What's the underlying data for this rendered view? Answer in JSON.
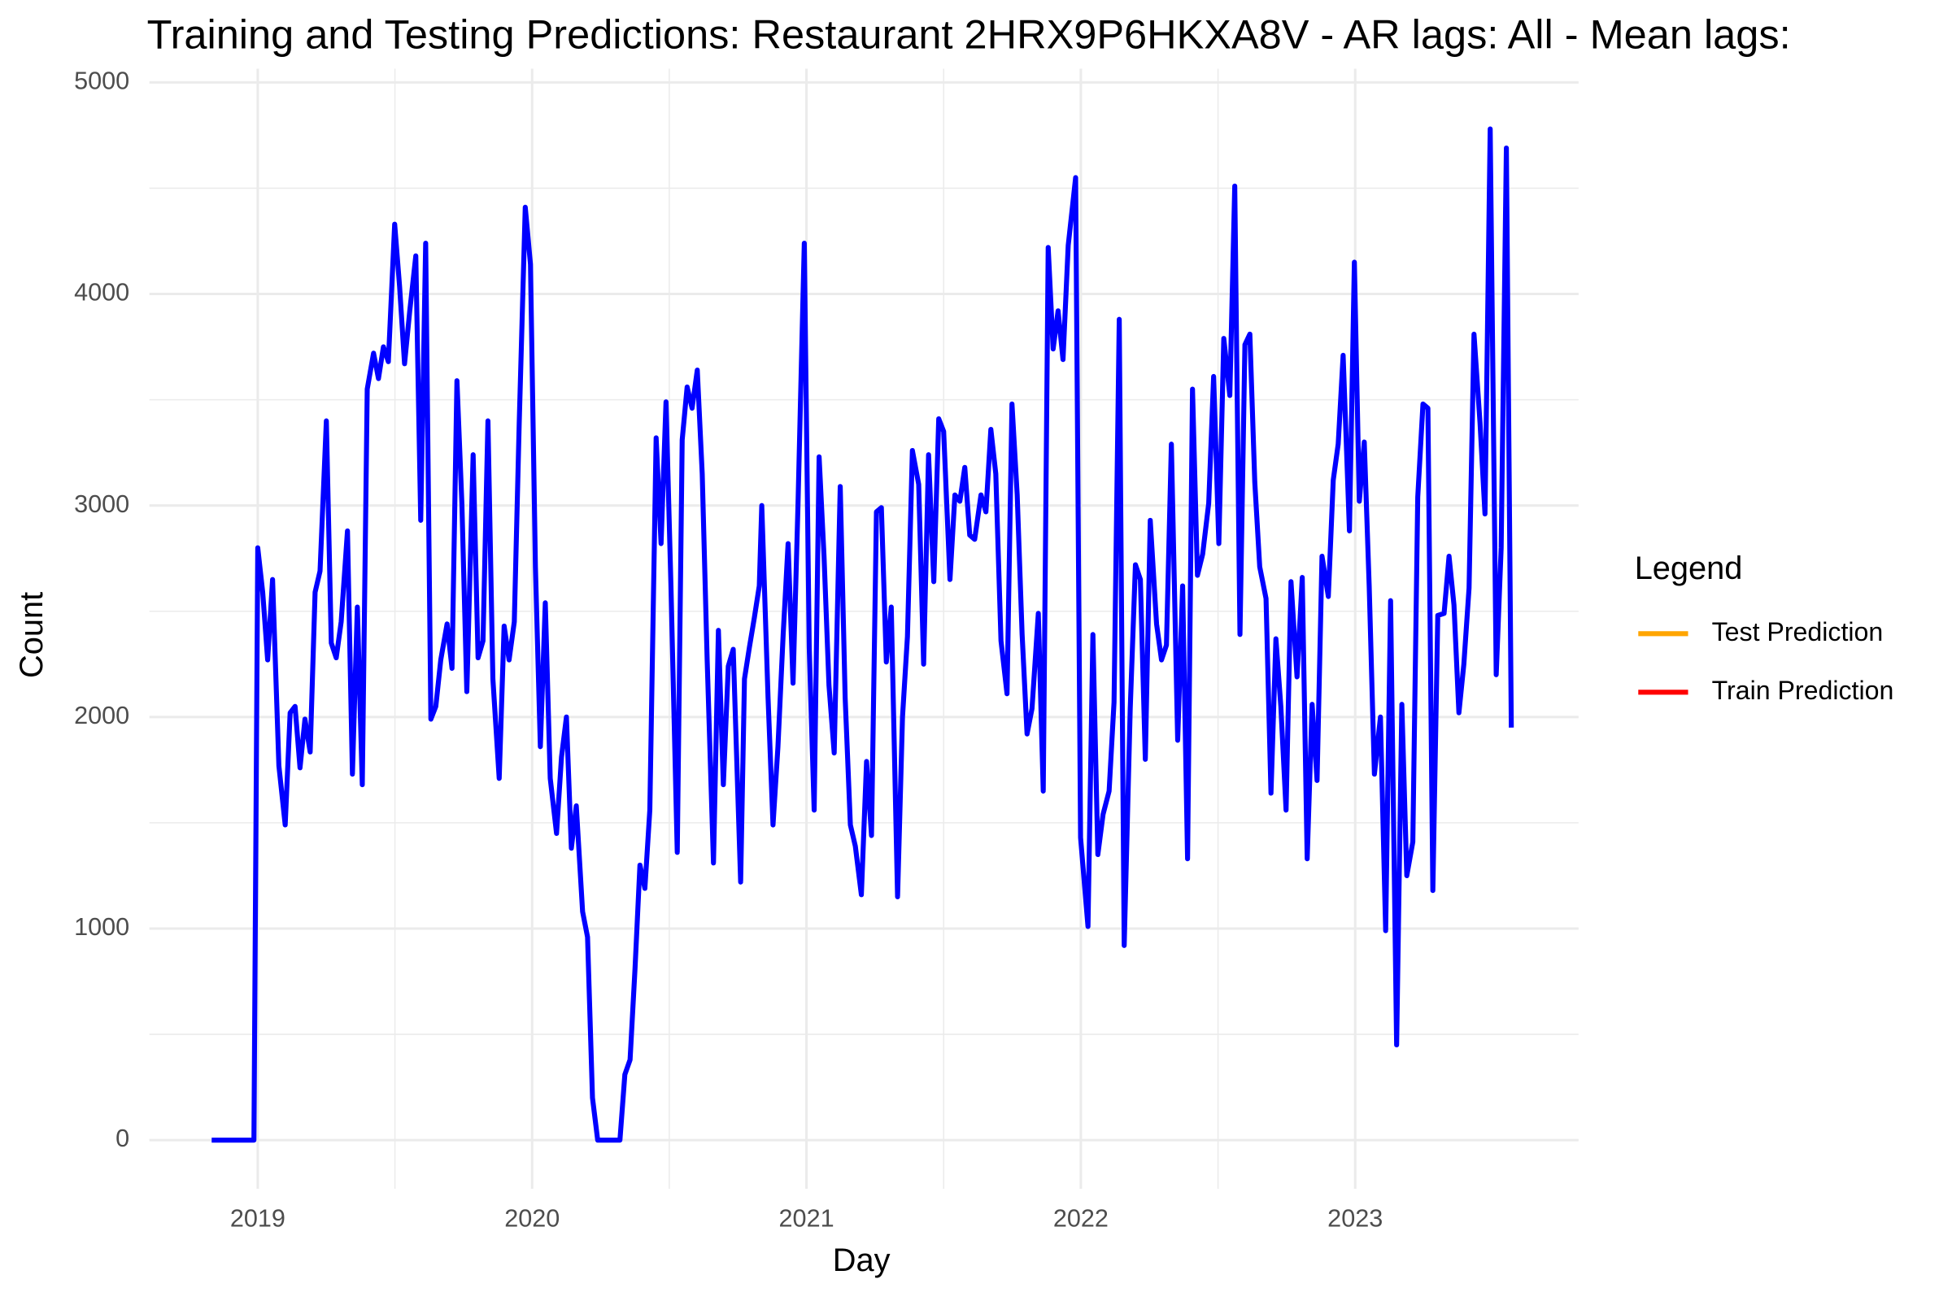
{
  "chart_data": {
    "type": "line",
    "title": "Training and Testing Predictions: Restaurant 2HRX9P6HKXA8V - AR lags: All - Mean lags:",
    "x_label": "Day",
    "y_label": "Count",
    "xlim": [
      2018.605,
      2023.814
    ],
    "xticks": [
      2019,
      2020,
      2021,
      2022,
      2023
    ],
    "ylim": [
      -230,
      5065
    ],
    "yticks": [
      0,
      1000,
      2000,
      3000,
      4000,
      5000
    ],
    "grid": true,
    "legend": {
      "title": "Legend",
      "position": "right",
      "entries": [
        {
          "name": "Test Prediction",
          "color": "#ffa500"
        },
        {
          "name": "Train Prediction",
          "color": "#ff0000"
        }
      ]
    },
    "x": [
      2018.832,
      2018.986,
      2019.0,
      2019.018,
      2019.036,
      2019.054,
      2019.077,
      2019.1,
      2019.118,
      2019.136,
      2019.154,
      2019.172,
      2019.191,
      2019.209,
      2019.227,
      2019.25,
      2019.268,
      2019.286,
      2019.304,
      2019.327,
      2019.345,
      2019.363,
      2019.381,
      2019.399,
      2019.422,
      2019.44,
      2019.458,
      2019.476,
      2019.499,
      2019.517,
      2019.535,
      2019.554,
      2019.576,
      2019.594,
      2019.612,
      2019.631,
      2019.649,
      2019.667,
      2019.69,
      2019.708,
      2019.726,
      2019.744,
      2019.762,
      2019.785,
      2019.803,
      2019.821,
      2019.839,
      2019.857,
      2019.88,
      2019.898,
      2019.916,
      2019.935,
      2019.953,
      2019.975,
      2019.994,
      2020.012,
      2020.03,
      2020.048,
      2020.066,
      2020.089,
      2020.107,
      2020.125,
      2020.143,
      2020.161,
      2020.184,
      2020.202,
      2020.22,
      2020.239,
      2020.261,
      2020.284,
      2020.302,
      2020.32,
      2020.338,
      2020.357,
      2020.375,
      2020.393,
      2020.411,
      2020.429,
      2020.452,
      2020.47,
      2020.488,
      2020.506,
      2020.529,
      2020.547,
      2020.565,
      2020.583,
      2020.602,
      2020.62,
      2020.638,
      2020.661,
      2020.679,
      2020.697,
      2020.715,
      2020.733,
      2020.76,
      2020.774,
      2020.792,
      2020.81,
      2020.828,
      2020.837,
      2020.86,
      2020.878,
      2020.896,
      2020.915,
      2020.933,
      2020.951,
      2020.969,
      2020.992,
      2021.01,
      2021.028,
      2021.046,
      2021.064,
      2021.082,
      2021.101,
      2021.123,
      2021.141,
      2021.16,
      2021.178,
      2021.2,
      2021.219,
      2021.237,
      2021.255,
      2021.273,
      2021.291,
      2021.309,
      2021.332,
      2021.35,
      2021.368,
      2021.386,
      2021.409,
      2021.427,
      2021.445,
      2021.464,
      2021.482,
      2021.5,
      2021.523,
      2021.541,
      2021.559,
      2021.577,
      2021.595,
      2021.613,
      2021.636,
      2021.654,
      2021.672,
      2021.69,
      2021.709,
      2021.731,
      2021.749,
      2021.768,
      2021.786,
      2021.804,
      2021.822,
      2021.845,
      2021.863,
      2021.881,
      2021.899,
      2021.917,
      2021.935,
      2021.954,
      2021.981,
      2021.999,
      2022.026,
      2022.044,
      2022.062,
      2022.081,
      2022.103,
      2022.121,
      2022.14,
      2022.158,
      2022.18,
      2022.199,
      2022.217,
      2022.235,
      2022.253,
      2022.276,
      2022.294,
      2022.312,
      2022.33,
      2022.353,
      2022.371,
      2022.389,
      2022.407,
      2022.425,
      2022.444,
      2022.466,
      2022.484,
      2022.503,
      2022.521,
      2022.543,
      2022.561,
      2022.58,
      2022.598,
      2022.616,
      2022.634,
      2022.652,
      2022.675,
      2022.693,
      2022.711,
      2022.729,
      2022.748,
      2022.766,
      2022.788,
      2022.807,
      2022.825,
      2022.843,
      2022.861,
      2022.879,
      2022.902,
      2022.92,
      2022.938,
      2022.956,
      2022.979,
      2022.997,
      2023.015,
      2023.033,
      2023.051,
      2023.07,
      2023.092,
      2023.111,
      2023.129,
      2023.151,
      2023.17,
      2023.188,
      2023.21,
      2023.228,
      2023.247,
      2023.265,
      2023.283,
      2023.301,
      2023.324,
      2023.342,
      2023.36,
      2023.378,
      2023.396,
      2023.415,
      2023.433,
      2023.455,
      2023.473,
      2023.492,
      2023.514,
      2023.532,
      2023.551,
      2023.569
    ],
    "series": [
      {
        "color": "#0000ff",
        "values": [
          0,
          0,
          2800,
          2590,
          2270,
          2650,
          1770,
          1490,
          2020,
          2050,
          1760,
          1990,
          1835,
          2590,
          2690,
          3400,
          2350,
          2280,
          2450,
          2880,
          1730,
          2520,
          1680,
          3550,
          3720,
          3600,
          3750,
          3680,
          4330,
          4035,
          3670,
          3920,
          4180,
          2930,
          4240,
          1990,
          2050,
          2270,
          2440,
          2230,
          3590,
          3010,
          2120,
          3240,
          2280,
          2360,
          3400,
          2180,
          1710,
          2430,
          2270,
          2450,
          3390,
          4410,
          4140,
          2710,
          1860,
          2540,
          1710,
          1450,
          1810,
          2000,
          1380,
          1580,
          1080,
          960,
          200,
          0,
          0,
          0,
          0,
          0,
          310,
          380,
          810,
          1300,
          1190,
          1560,
          3320,
          2820,
          3490,
          2620,
          1360,
          3310,
          3560,
          3460,
          3640,
          3150,
          2270,
          1310,
          2410,
          1680,
          2240,
          2320,
          1220,
          2180,
          2330,
          2470,
          2620,
          3000,
          2090,
          1490,
          1860,
          2390,
          2820,
          2160,
          3000,
          4240,
          2330,
          1560,
          3230,
          2760,
          2150,
          1830,
          3090,
          2090,
          1490,
          1390,
          1160,
          1790,
          1440,
          2970,
          2990,
          2260,
          2520,
          1150,
          2000,
          2380,
          3260,
          3100,
          2250,
          3240,
          2640,
          3410,
          3350,
          2650,
          3050,
          3020,
          3180,
          2860,
          2840,
          3050,
          2970,
          3360,
          3150,
          2360,
          2110,
          3480,
          3050,
          2390,
          1920,
          2040,
          2490,
          1650,
          4220,
          3740,
          3920,
          3690,
          4230,
          4550,
          1430,
          1010,
          2390,
          1350,
          1540,
          1650,
          2070,
          3880,
          920,
          2040,
          2720,
          2650,
          1800,
          2930,
          2440,
          2270,
          2340,
          3290,
          1890,
          2620,
          1330,
          3550,
          2670,
          2770,
          3010,
          3610,
          2820,
          3790,
          3520,
          4510,
          2390,
          3760,
          3810,
          3110,
          2710,
          2560,
          1640,
          2370,
          2050,
          1560,
          2640,
          2190,
          2660,
          1330,
          2060,
          1700,
          2760,
          2570,
          3120,
          3290,
          3710,
          2880,
          4150,
          3020,
          3300,
          2620,
          1730,
          2000,
          990,
          2550,
          450,
          2060,
          1250,
          1410,
          3040,
          3480,
          3460,
          1180,
          2480,
          2490,
          2760,
          2530,
          2020,
          2250,
          2610,
          3810,
          3390,
          2960,
          4780,
          2200,
          2800,
          4690,
          1950
        ]
      }
    ]
  }
}
